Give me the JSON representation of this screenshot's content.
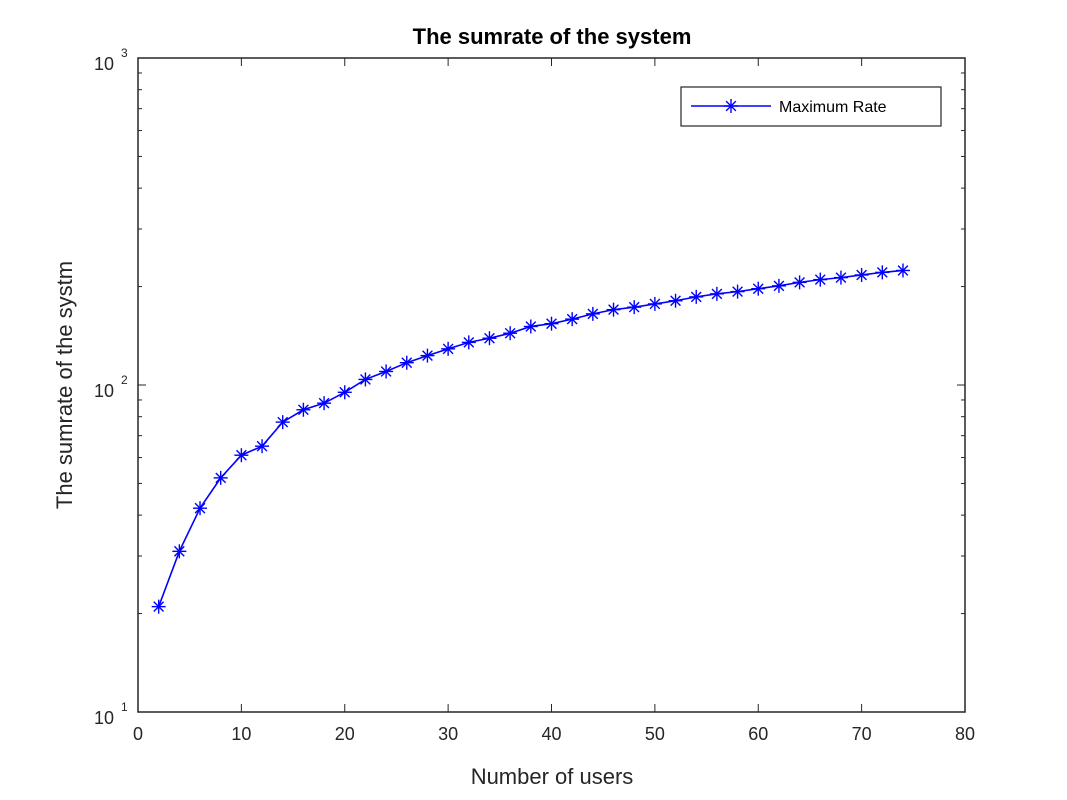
{
  "chart_data": {
    "type": "line",
    "title": "The sumrate of the system",
    "xlabel": "Number of users",
    "ylabel": "The sumrate of the systm",
    "xlim": [
      0,
      80
    ],
    "ylim": [
      10,
      1000
    ],
    "yscale": "log",
    "grid": false,
    "legend_position": "top-right",
    "x_ticks": [
      "0",
      "10",
      "20",
      "30",
      "40",
      "50",
      "60",
      "70",
      "80"
    ],
    "y_ticks": [
      {
        "base": "10",
        "exp": "1"
      },
      {
        "base": "10",
        "exp": "2"
      },
      {
        "base": "10",
        "exp": "3"
      }
    ],
    "series": [
      {
        "name": "Maximum Rate",
        "color": "#0000ff",
        "marker": "asterisk",
        "x": [
          2,
          4,
          6,
          8,
          10,
          12,
          14,
          16,
          18,
          20,
          22,
          24,
          26,
          28,
          30,
          32,
          34,
          36,
          38,
          40,
          42,
          44,
          46,
          48,
          50,
          52,
          54,
          56,
          58,
          60,
          62,
          64,
          66,
          68,
          70,
          72,
          74
        ],
        "y": [
          21,
          31,
          42,
          52,
          61,
          65,
          77,
          84,
          88,
          95,
          104,
          110,
          117,
          123,
          129,
          135,
          139,
          144,
          151,
          154,
          159,
          165,
          170,
          173,
          177,
          181,
          186,
          190,
          193,
          197,
          201,
          206,
          210,
          213,
          217,
          221,
          224
        ]
      }
    ]
  }
}
